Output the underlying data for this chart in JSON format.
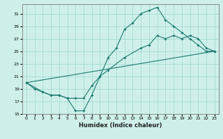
{
  "xlabel": "Humidex (Indice chaleur)",
  "bg_color": "#cff0ea",
  "grid_color": "#aaddd6",
  "line_color": "#1a7a6e",
  "xlim": [
    -0.5,
    23.5
  ],
  "ylim": [
    15,
    32.5
  ],
  "yticks": [
    15,
    17,
    19,
    21,
    23,
    25,
    27,
    29,
    31
  ],
  "xticks": [
    0,
    1,
    2,
    3,
    4,
    5,
    6,
    7,
    8,
    9,
    10,
    11,
    12,
    13,
    14,
    15,
    16,
    17,
    18,
    19,
    20,
    21,
    22,
    23
  ],
  "line1_x": [
    0,
    1,
    2,
    3,
    4,
    5,
    6,
    7,
    8,
    9,
    10,
    11,
    12,
    13,
    14,
    15,
    16,
    17,
    18,
    19,
    20,
    21,
    22,
    23
  ],
  "line1_y": [
    20.0,
    19.0,
    18.5,
    18.0,
    18.0,
    17.5,
    15.5,
    15.5,
    18.0,
    21.0,
    24.0,
    25.5,
    28.5,
    29.5,
    31.0,
    31.5,
    32.0,
    30.0,
    29.0,
    28.0,
    27.0,
    26.0,
    25.0,
    25.0
  ],
  "line2_x": [
    0,
    2,
    3,
    4,
    5,
    6,
    7,
    8,
    9,
    10,
    12,
    14,
    15,
    16,
    17,
    18,
    19,
    20,
    21,
    22,
    23
  ],
  "line2_y": [
    20.0,
    18.5,
    18.0,
    18.0,
    17.5,
    17.5,
    17.5,
    19.5,
    21.0,
    22.0,
    24.0,
    25.5,
    26.0,
    27.5,
    27.0,
    27.5,
    27.0,
    27.5,
    27.0,
    25.5,
    25.0
  ],
  "line3_x": [
    0,
    23
  ],
  "line3_y": [
    20.0,
    25.0
  ]
}
